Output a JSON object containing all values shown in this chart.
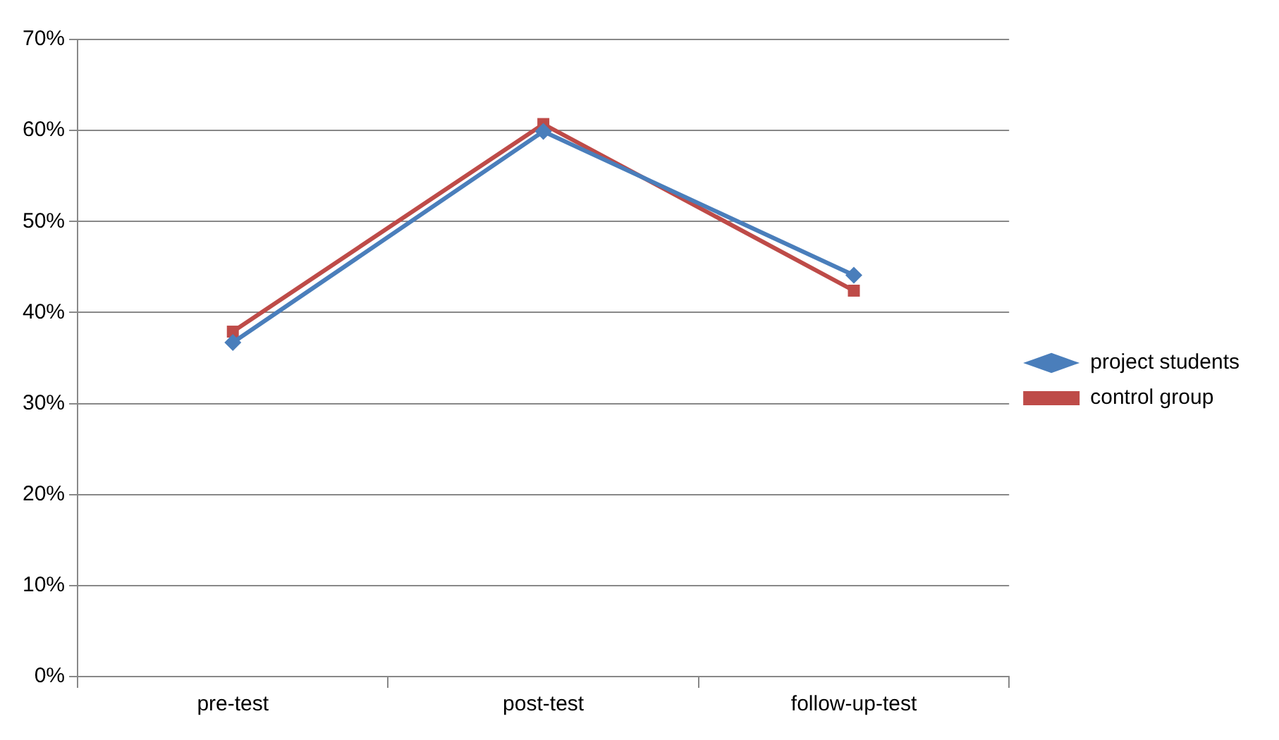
{
  "chart_data": {
    "type": "line",
    "categories": [
      "pre-test",
      "post-test",
      "follow-up-test"
    ],
    "series": [
      {
        "name": "project students",
        "color": "#4a7ebb",
        "values": [
          36.7,
          59.9,
          44.1
        ],
        "marker": "diamond"
      },
      {
        "name": "control group",
        "color": "#be4b48",
        "values": [
          37.9,
          60.7,
          42.4
        ],
        "marker": "square"
      }
    ],
    "ylim": [
      0,
      70
    ],
    "yticks": [
      {
        "value": 0,
        "label": "0%"
      },
      {
        "value": 10,
        "label": "10%"
      },
      {
        "value": 20,
        "label": "20%"
      },
      {
        "value": 30,
        "label": "30%"
      },
      {
        "value": 40,
        "label": "40%"
      },
      {
        "value": 50,
        "label": "50%"
      },
      {
        "value": 60,
        "label": "60%"
      },
      {
        "value": 70,
        "label": "70%"
      }
    ],
    "grid": "y",
    "legend": "right",
    "line_style": "solid"
  }
}
